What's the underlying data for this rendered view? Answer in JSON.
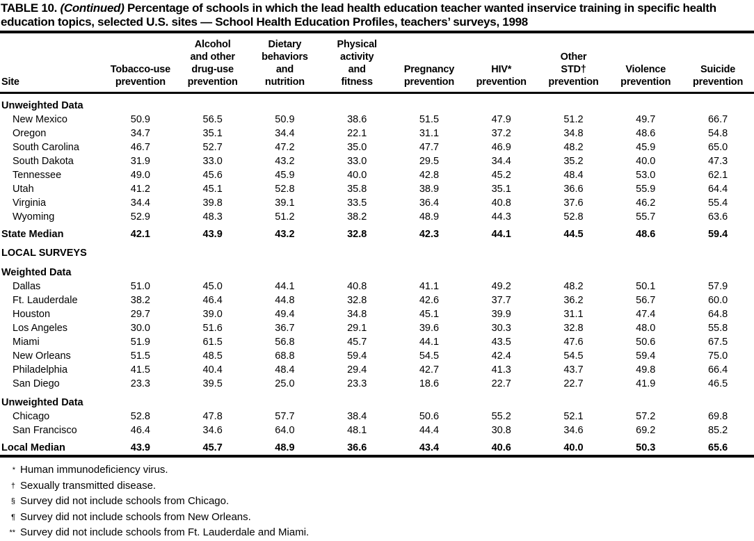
{
  "title": {
    "label": "TABLE 10.",
    "continued": "(Continued)",
    "text": "Percentage of schools in which the lead health education teacher wanted inservice training in specific health education topics, selected U.S. sites — School Health Education Profiles, teachers’ surveys, 1998"
  },
  "table": {
    "columns": [
      {
        "label": "Site"
      },
      {
        "label": "Tobacco-use\nprevention"
      },
      {
        "label": "Alcohol\nand other\ndrug-use\nprevention"
      },
      {
        "label": "Dietary\nbehaviors\nand\nnutrition"
      },
      {
        "label": "Physical\nactivity\nand\nfitness"
      },
      {
        "label": "Pregnancy\nprevention"
      },
      {
        "label": "HIV*\nprevention"
      },
      {
        "label": "Other\nSTD†\nprevention"
      },
      {
        "label": "Violence\nprevention"
      },
      {
        "label": "Suicide\nprevention"
      }
    ],
    "rows": [
      {
        "type": "section",
        "label": "Unweighted Data"
      },
      {
        "type": "data",
        "label": "New Mexico",
        "values": [
          "50.9",
          "56.5",
          "50.9",
          "38.6",
          "51.5",
          "47.9",
          "51.2",
          "49.7",
          "66.7"
        ]
      },
      {
        "type": "data",
        "label": "Oregon",
        "values": [
          "34.7",
          "35.1",
          "34.4",
          "22.1",
          "31.1",
          "37.2",
          "34.8",
          "48.6",
          "54.8"
        ]
      },
      {
        "type": "data",
        "label": "South Carolina",
        "values": [
          "46.7",
          "52.7",
          "47.2",
          "35.0",
          "47.7",
          "46.9",
          "48.2",
          "45.9",
          "65.0"
        ]
      },
      {
        "type": "data",
        "label": "South Dakota",
        "values": [
          "31.9",
          "33.0",
          "43.2",
          "33.0",
          "29.5",
          "34.4",
          "35.2",
          "40.0",
          "47.3"
        ]
      },
      {
        "type": "data",
        "label": "Tennessee",
        "values": [
          "49.0",
          "45.6",
          "45.9",
          "40.0",
          "42.8",
          "45.2",
          "48.4",
          "53.0",
          "62.1"
        ]
      },
      {
        "type": "data",
        "label": "Utah",
        "values": [
          "41.2",
          "45.1",
          "52.8",
          "35.8",
          "38.9",
          "35.1",
          "36.6",
          "55.9",
          "64.4"
        ]
      },
      {
        "type": "data",
        "label": "Virginia",
        "values": [
          "34.4",
          "39.8",
          "39.1",
          "33.5",
          "36.4",
          "40.8",
          "37.6",
          "46.2",
          "55.4"
        ]
      },
      {
        "type": "data",
        "label": "Wyoming",
        "values": [
          "52.9",
          "48.3",
          "51.2",
          "38.2",
          "48.9",
          "44.3",
          "52.8",
          "55.7",
          "63.6"
        ]
      },
      {
        "type": "total",
        "label": "State Median",
        "values": [
          "42.1",
          "43.9",
          "43.2",
          "32.8",
          "42.3",
          "44.1",
          "44.5",
          "48.6",
          "59.4"
        ]
      },
      {
        "type": "group",
        "label": "LOCAL SURVEYS"
      },
      {
        "type": "section",
        "label": "Weighted Data"
      },
      {
        "type": "data",
        "label": "Dallas",
        "values": [
          "51.0",
          "45.0",
          "44.1",
          "40.8",
          "41.1",
          "49.2",
          "48.2",
          "50.1",
          "57.9"
        ]
      },
      {
        "type": "data",
        "label": "Ft. Lauderdale",
        "values": [
          "38.2",
          "46.4",
          "44.8",
          "32.8",
          "42.6",
          "37.7",
          "36.2",
          "56.7",
          "60.0"
        ]
      },
      {
        "type": "data",
        "label": "Houston",
        "values": [
          "29.7",
          "39.0",
          "49.4",
          "34.8",
          "45.1",
          "39.9",
          "31.1",
          "47.4",
          "64.8"
        ]
      },
      {
        "type": "data",
        "label": "Los Angeles",
        "values": [
          "30.0",
          "51.6",
          "36.7",
          "29.1",
          "39.6",
          "30.3",
          "32.8",
          "48.0",
          "55.8"
        ]
      },
      {
        "type": "data",
        "label": "Miami",
        "values": [
          "51.9",
          "61.5",
          "56.8",
          "45.7",
          "44.1",
          "43.5",
          "47.6",
          "50.6",
          "67.5"
        ]
      },
      {
        "type": "data",
        "label": "New Orleans",
        "values": [
          "51.5",
          "48.5",
          "68.8",
          "59.4",
          "54.5",
          "42.4",
          "54.5",
          "59.4",
          "75.0"
        ]
      },
      {
        "type": "data",
        "label": "Philadelphia",
        "values": [
          "41.5",
          "40.4",
          "48.4",
          "29.4",
          "42.7",
          "41.3",
          "43.7",
          "49.8",
          "66.4"
        ]
      },
      {
        "type": "data",
        "label": "San Diego",
        "values": [
          "23.3",
          "39.5",
          "25.0",
          "23.3",
          "18.6",
          "22.7",
          "22.7",
          "41.9",
          "46.5"
        ]
      },
      {
        "type": "section",
        "label": "Unweighted Data"
      },
      {
        "type": "data",
        "label": "Chicago",
        "values": [
          "52.8",
          "47.8",
          "57.7",
          "38.4",
          "50.6",
          "55.2",
          "52.1",
          "57.2",
          "69.8"
        ]
      },
      {
        "type": "data",
        "label": "San Francisco",
        "values": [
          "46.4",
          "34.6",
          "64.0",
          "48.1",
          "44.4",
          "30.8",
          "34.6",
          "69.2",
          "85.2"
        ]
      },
      {
        "type": "total",
        "label": "Local Median",
        "values": [
          "43.9",
          "45.7",
          "48.9",
          "36.6",
          "43.4",
          "40.6",
          "40.0",
          "50.3",
          "65.6"
        ]
      }
    ]
  },
  "footnotes": [
    {
      "marker": "*",
      "text": "Human immunodeficiency virus."
    },
    {
      "marker": "†",
      "text": "Sexually transmitted disease."
    },
    {
      "marker": "§",
      "text": "Survey did not include schools from Chicago."
    },
    {
      "marker": "¶",
      "text": "Survey did not include schools from New Orleans."
    },
    {
      "marker": "**",
      "text": "Survey did not include schools from Ft. Lauderdale and Miami."
    }
  ]
}
